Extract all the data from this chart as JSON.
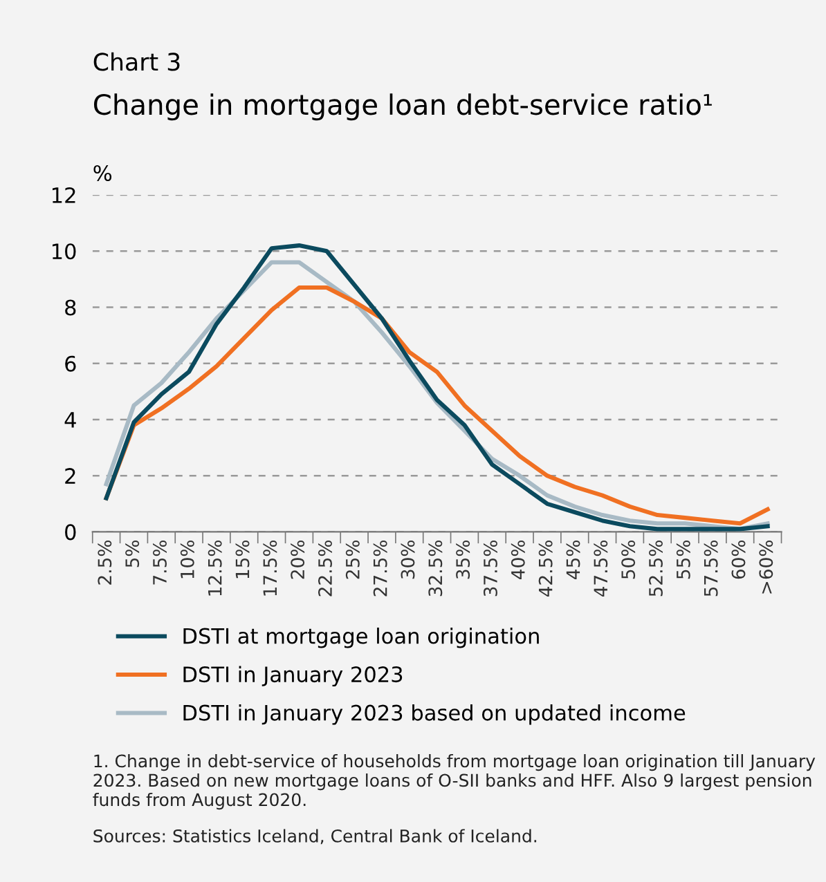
{
  "chart_data": {
    "type": "line",
    "subtitle": "Chart 3",
    "title": "Change in mortgage loan debt-service ratio¹",
    "ylabel": "%",
    "categories": [
      "2.5%",
      "5%",
      "7.5%",
      "10%",
      "12.5%",
      "15%",
      "17.5%",
      "20%",
      "22.5%",
      "25%",
      "27.5%",
      "30%",
      "32.5%",
      "35%",
      "37.5%",
      "40%",
      "42.5%",
      "45%",
      "47.5%",
      "50%",
      "52.5%",
      "55%",
      "57.5%",
      "60%",
      ">60%"
    ],
    "series": [
      {
        "name": "DSTI at mortgage loan origination",
        "color": "#0b4a5e",
        "values": [
          1.2,
          3.9,
          4.9,
          5.7,
          7.4,
          8.7,
          10.1,
          10.2,
          10.0,
          8.8,
          7.6,
          6.1,
          4.7,
          3.8,
          2.4,
          1.7,
          1.0,
          0.7,
          0.4,
          0.2,
          0.1,
          0.1,
          0.1,
          0.1,
          0.2
        ]
      },
      {
        "name": "DSTI in January 2023",
        "color": "#f07022",
        "values": [
          1.2,
          3.8,
          4.4,
          5.1,
          5.9,
          6.9,
          7.9,
          8.7,
          8.7,
          8.2,
          7.6,
          6.4,
          5.7,
          4.5,
          3.6,
          2.7,
          2.0,
          1.6,
          1.3,
          0.9,
          0.6,
          0.5,
          0.4,
          0.3,
          0.8
        ]
      },
      {
        "name": "DSTI in January 2023 based on updated income",
        "color": "#a8bac5",
        "values": [
          1.7,
          4.5,
          5.3,
          6.4,
          7.6,
          8.6,
          9.6,
          9.6,
          8.9,
          8.2,
          7.1,
          5.9,
          4.6,
          3.6,
          2.6,
          2.0,
          1.3,
          0.9,
          0.6,
          0.4,
          0.3,
          0.3,
          0.2,
          0.1,
          0.3
        ]
      }
    ],
    "ylim": [
      0,
      12
    ],
    "yticks": [
      0,
      2,
      4,
      6,
      8,
      10,
      12
    ],
    "grid": "y",
    "legend": "bottom",
    "marker": "none",
    "line_style": "solid",
    "annotations": [
      "1. Change in debt-service of households from mortgage loan origination till January 2023. Based on new mortgage loans of O-SII banks and HFF. Also 9 largest pension funds from August 2020.",
      "Sources: Statistics Iceland, Central Bank of Iceland."
    ]
  }
}
